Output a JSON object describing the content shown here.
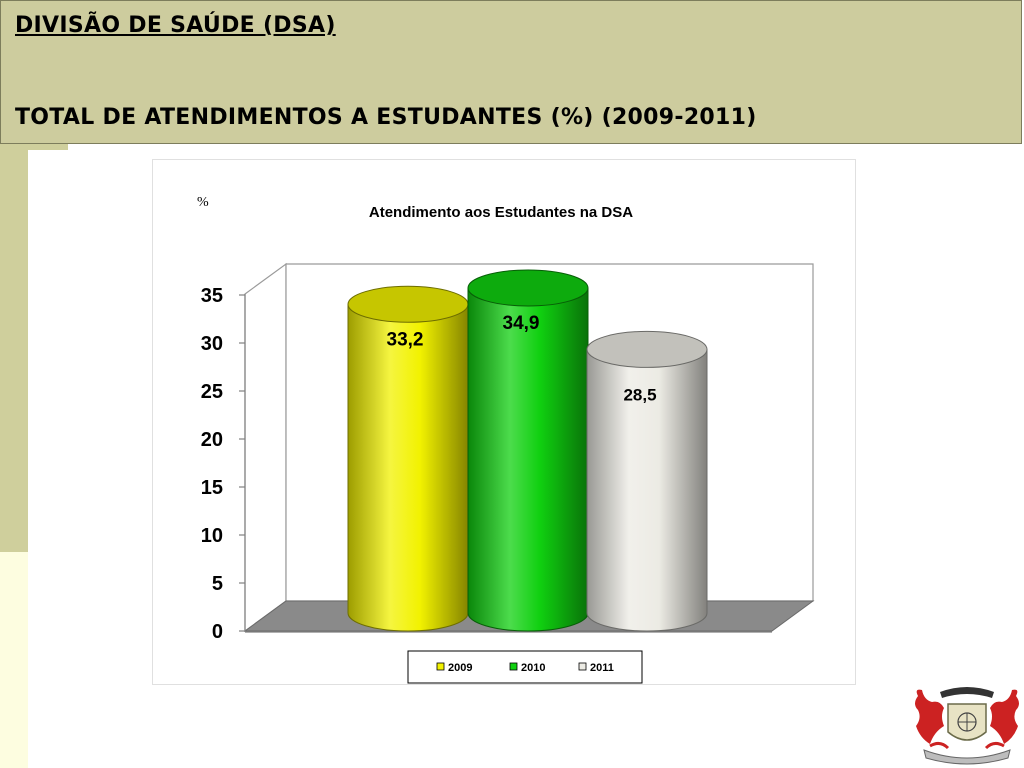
{
  "header": {
    "title": "DIVISÃO DE SAÚDE (DSA)",
    "subtitle": "TOTAL DE ATENDIMENTOS A ESTUDANTES (%) (2009-2011)"
  },
  "colors": {
    "header_bg": "#cdcc9e",
    "side_strip": "#fdfde0",
    "floor": "#8a8a8a"
  },
  "chart_data": {
    "type": "bar",
    "style": "3d-cylinder",
    "title": "Atendimento aos Estudantes na DSA",
    "unit_label": "%",
    "categories": [
      "2009",
      "2010",
      "2011"
    ],
    "values": [
      33.2,
      34.9,
      28.5
    ],
    "value_labels": [
      "33,2",
      "34,9",
      "28,5"
    ],
    "series_colors": [
      "#f2f200",
      "#10d010",
      "#ecebe4"
    ],
    "ylim": [
      0,
      35
    ],
    "yticks": [
      "0",
      "5",
      "10",
      "15",
      "20",
      "25",
      "30",
      "35"
    ],
    "grid": false,
    "legend": {
      "position": "bottom",
      "entries": [
        "2009",
        "2010",
        "2011"
      ]
    }
  }
}
